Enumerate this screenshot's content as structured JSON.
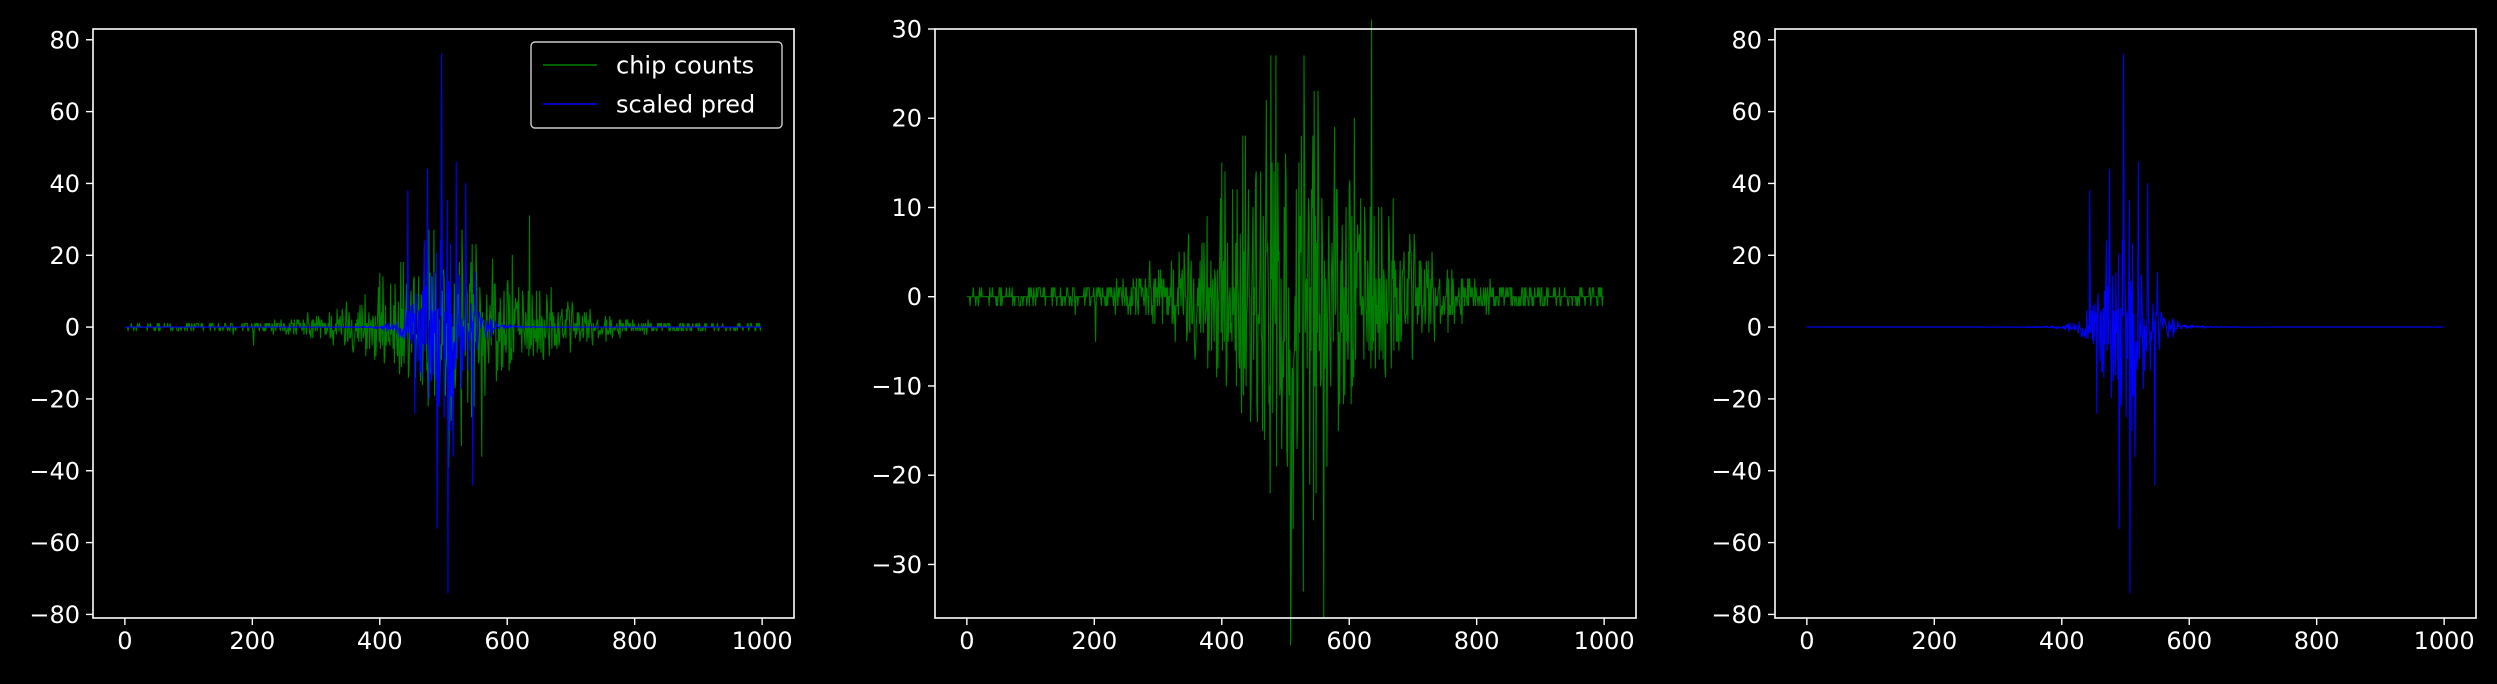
{
  "colors": {
    "background": "#000000",
    "axes": "#ffffff",
    "chip_counts": "#008000",
    "scaled_pred": "#0000ff"
  },
  "chart_data": [
    {
      "type": "line",
      "title": "",
      "xlabel": "",
      "ylabel": "",
      "xlim": [
        -50,
        1050
      ],
      "ylim": [
        -81,
        83
      ],
      "xticks": [
        0,
        200,
        400,
        600,
        800,
        1000
      ],
      "xtick_labels": [
        "0",
        "200",
        "400",
        "600",
        "800",
        "1000"
      ],
      "yticks": [
        -80,
        -60,
        -40,
        -20,
        0,
        20,
        40,
        60,
        80
      ],
      "ytick_labels": [
        "−80",
        "−60",
        "−40",
        "−20",
        "0",
        "20",
        "40",
        "60",
        "80"
      ],
      "legend": {
        "position": "top-right",
        "entries": [
          "chip counts",
          "scaled pred"
        ]
      },
      "grid": false,
      "n_points": 1000,
      "series": [
        {
          "name": "chip counts",
          "color": "#008000",
          "x_range": [
            0,
            999
          ],
          "description": "noisy integer counts, near zero at edges, strongest fluctuations between x=400 and x=650",
          "envelope": {
            "center": 500,
            "width": 150,
            "amplitude_low": 23,
            "amplitude_high": 20
          },
          "peak": {
            "max": 27,
            "min": -33
          }
        },
        {
          "name": "scaled pred",
          "color": "#0000ff",
          "x_range": [
            0,
            999
          ],
          "description": "smooth near zero except a burst centred near x=500",
          "envelope": {
            "center": 500,
            "width": 45
          },
          "peak": {
            "max": 76,
            "min": -74
          }
        }
      ]
    },
    {
      "type": "line",
      "title": "",
      "xlabel": "",
      "ylabel": "",
      "xlim": [
        -50,
        1050
      ],
      "ylim": [
        -36,
        30
      ],
      "xticks": [
        0,
        200,
        400,
        600,
        800,
        1000
      ],
      "xtick_labels": [
        "0",
        "200",
        "400",
        "600",
        "800",
        "1000"
      ],
      "yticks": [
        -30,
        -20,
        -10,
        0,
        10,
        20,
        30
      ],
      "ytick_labels": [
        "−30",
        "−20",
        "−10",
        "0",
        "10",
        "20",
        "30"
      ],
      "grid": false,
      "n_points": 1000,
      "series": [
        {
          "name": "chip counts",
          "color": "#008000",
          "x_range": [
            0,
            999
          ],
          "envelope": {
            "center": 520,
            "width": 150
          },
          "peak": {
            "max": 27,
            "min": -33
          }
        }
      ]
    },
    {
      "type": "line",
      "title": "",
      "xlabel": "",
      "ylabel": "",
      "xlim": [
        -50,
        1050
      ],
      "ylim": [
        -81,
        83
      ],
      "xticks": [
        0,
        200,
        400,
        600,
        800,
        1000
      ],
      "xtick_labels": [
        "0",
        "200",
        "400",
        "600",
        "800",
        "1000"
      ],
      "yticks": [
        -80,
        -60,
        -40,
        -20,
        0,
        20,
        40,
        60,
        80
      ],
      "ytick_labels": [
        "−80",
        "−60",
        "−40",
        "−20",
        "0",
        "20",
        "40",
        "60",
        "80"
      ],
      "grid": false,
      "n_points": 1000,
      "series": [
        {
          "name": "scaled pred",
          "color": "#0000ff",
          "x_range": [
            0,
            999
          ],
          "envelope": {
            "center": 500,
            "width": 45
          },
          "peak": {
            "max": 76,
            "min": -74
          }
        }
      ]
    }
  ]
}
